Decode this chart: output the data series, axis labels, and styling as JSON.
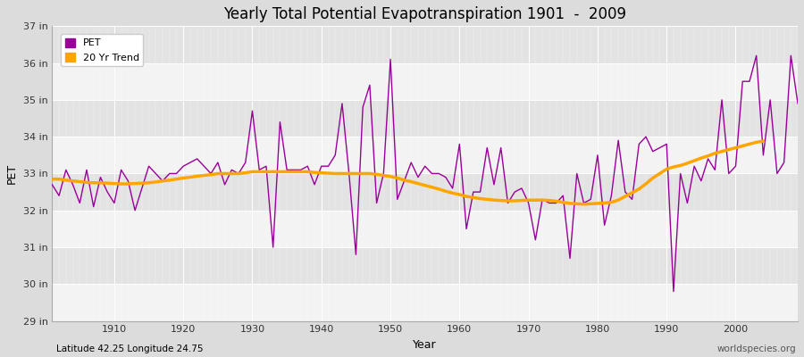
{
  "title": "Yearly Total Potential Evapotranspiration 1901  -  2009",
  "xlabel": "Year",
  "ylabel": "PET",
  "x_label_bottom_left": "Latitude 42.25 Longitude 24.75",
  "x_label_bottom_right": "worldspecies.org",
  "pet_color": "#990099",
  "trend_color": "#FFA500",
  "fig_bg_color": "#DCDCDC",
  "plot_bg_color": "#E8E8E8",
  "ylim": [
    29,
    37
  ],
  "yticks": [
    29,
    30,
    31,
    32,
    33,
    34,
    35,
    36,
    37
  ],
  "ytick_labels": [
    "29 in",
    "30 in",
    "31 in",
    "32 in",
    "33 in",
    "34 in",
    "35 in",
    "36 in",
    "37 in"
  ],
  "years": [
    1901,
    1902,
    1903,
    1904,
    1905,
    1906,
    1907,
    1908,
    1909,
    1910,
    1911,
    1912,
    1913,
    1914,
    1915,
    1916,
    1917,
    1918,
    1919,
    1920,
    1921,
    1922,
    1923,
    1924,
    1925,
    1926,
    1927,
    1928,
    1929,
    1930,
    1931,
    1932,
    1933,
    1934,
    1935,
    1936,
    1937,
    1938,
    1939,
    1940,
    1941,
    1942,
    1943,
    1944,
    1945,
    1946,
    1947,
    1948,
    1949,
    1950,
    1951,
    1952,
    1953,
    1954,
    1955,
    1956,
    1957,
    1958,
    1959,
    1960,
    1961,
    1962,
    1963,
    1964,
    1965,
    1966,
    1967,
    1968,
    1969,
    1970,
    1971,
    1972,
    1973,
    1974,
    1975,
    1976,
    1977,
    1978,
    1979,
    1980,
    1981,
    1982,
    1983,
    1984,
    1985,
    1986,
    1987,
    1988,
    1989,
    1990,
    1991,
    1992,
    1993,
    1994,
    1995,
    1996,
    1997,
    1998,
    1999,
    2000,
    2001,
    2002,
    2003,
    2004,
    2005,
    2006,
    2007,
    2008,
    2009
  ],
  "pet_values": [
    32.7,
    32.4,
    33.1,
    32.7,
    32.2,
    33.1,
    32.1,
    32.9,
    32.5,
    32.2,
    33.1,
    32.8,
    32.0,
    32.6,
    33.2,
    33.0,
    32.8,
    33.0,
    33.0,
    33.2,
    33.3,
    33.4,
    33.2,
    33.0,
    33.3,
    32.7,
    33.1,
    33.0,
    33.3,
    34.7,
    33.1,
    33.2,
    31.0,
    34.4,
    33.1,
    33.1,
    33.1,
    33.2,
    32.7,
    33.2,
    33.2,
    33.5,
    34.9,
    33.0,
    30.8,
    34.8,
    35.4,
    32.2,
    33.0,
    36.1,
    32.3,
    32.8,
    33.3,
    32.9,
    33.2,
    33.0,
    33.0,
    32.9,
    32.6,
    33.8,
    31.5,
    32.5,
    32.5,
    33.7,
    32.7,
    33.7,
    32.2,
    32.5,
    32.6,
    32.2,
    31.2,
    32.3,
    32.2,
    32.2,
    32.4,
    30.7,
    33.0,
    32.2,
    32.3,
    33.5,
    31.6,
    32.4,
    33.9,
    32.5,
    32.3,
    33.8,
    34.0,
    33.6,
    33.7,
    33.8,
    29.8,
    33.0,
    32.2,
    33.2,
    32.8,
    33.4,
    33.1,
    35.0,
    33.0,
    33.2,
    35.5,
    35.5,
    36.2,
    33.5,
    35.0,
    33.0,
    33.3,
    36.2,
    34.9
  ],
  "trend_values": [
    32.85,
    32.85,
    32.82,
    32.8,
    32.78,
    32.76,
    32.75,
    32.75,
    32.74,
    32.73,
    32.72,
    32.72,
    32.73,
    32.74,
    32.75,
    32.77,
    32.8,
    32.82,
    32.85,
    32.88,
    32.9,
    32.93,
    32.95,
    32.97,
    33.0,
    33.0,
    33.0,
    33.0,
    33.02,
    33.05,
    33.05,
    33.05,
    33.05,
    33.05,
    33.05,
    33.05,
    33.05,
    33.05,
    33.03,
    33.02,
    33.01,
    33.0,
    33.0,
    33.0,
    33.0,
    33.0,
    33.0,
    32.98,
    32.95,
    32.92,
    32.88,
    32.82,
    32.78,
    32.73,
    32.68,
    32.63,
    32.58,
    32.52,
    32.47,
    32.43,
    32.38,
    32.35,
    32.32,
    32.3,
    32.28,
    32.27,
    32.26,
    32.26,
    32.27,
    32.28,
    32.28,
    32.28,
    32.27,
    32.25,
    32.22,
    32.19,
    32.18,
    32.17,
    32.18,
    32.19,
    32.2,
    32.22,
    32.28,
    32.38,
    32.48,
    32.58,
    32.72,
    32.88,
    33.0,
    33.12,
    33.18,
    33.22,
    33.28,
    33.35,
    33.42,
    33.48,
    33.55,
    33.6,
    33.65,
    33.7,
    33.75,
    33.8,
    33.85,
    33.88,
    null,
    null,
    null,
    null,
    null
  ]
}
